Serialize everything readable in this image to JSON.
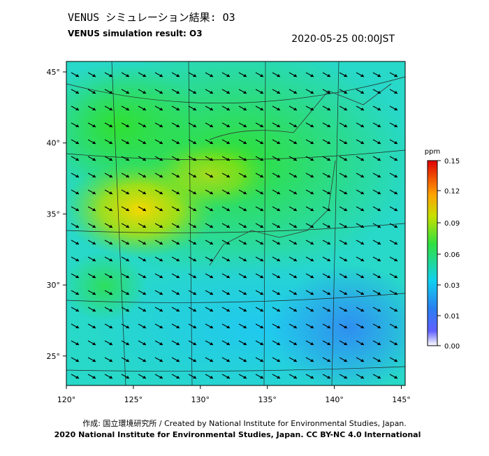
{
  "header": {
    "title": "VENUS シミュレーション結果: O3",
    "subtitle": "VENUS simulation result: O3",
    "timestamp": "2020-05-25 00:00JST"
  },
  "map": {
    "lat_ticks": [
      "45°",
      "40°",
      "35°",
      "30°",
      "25°"
    ],
    "lon_ticks": [
      "120°",
      "125°",
      "130°",
      "135°",
      "140°",
      "145°"
    ]
  },
  "colorbar": {
    "unit": "ppm",
    "ticks": [
      "0.15",
      "0.12",
      "0.09",
      "0.06",
      "0.03",
      "0.01",
      "0.00"
    ]
  },
  "footer": {
    "credit": "作成: 国立環境研究所 / Created by National Institute for Environmental Studies, Japan.",
    "copyright": "2020 National Institute for Environmental Studies, Japan. CC BY-NC 4.0 International"
  }
}
